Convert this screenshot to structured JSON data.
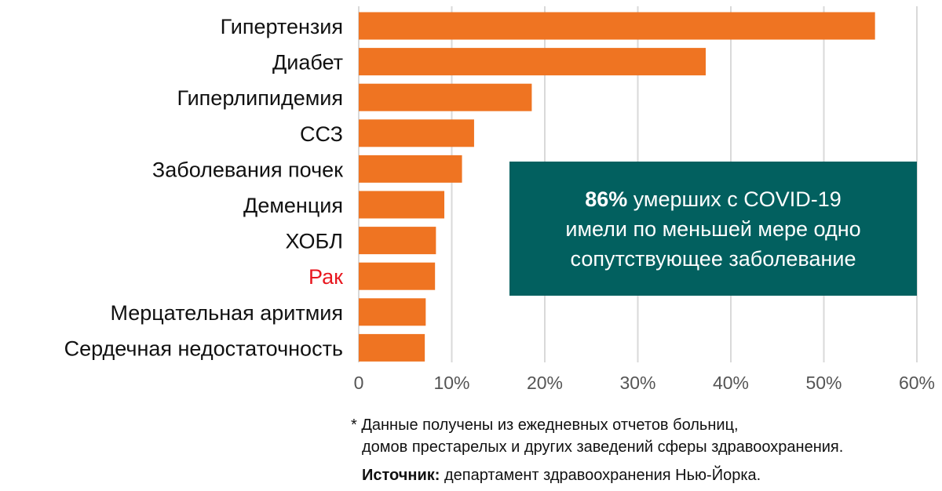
{
  "chart_data": {
    "type": "bar",
    "orientation": "horizontal",
    "categories": [
      "Гипертензия",
      "Диабет",
      "Гиперлипидемия",
      "ССЗ",
      "Заболевания почек",
      "Деменция",
      "ХОБЛ",
      "Рак",
      "Мерцательная аритмия",
      "Сердечная недостаточность"
    ],
    "values": [
      55.5,
      37.3,
      18.6,
      12.4,
      11.1,
      9.2,
      8.3,
      8.2,
      7.2,
      7.1
    ],
    "xlim": [
      0,
      60
    ],
    "ticks": [
      "0",
      "10%",
      "20%",
      "30%",
      "40%",
      "50%",
      "60%"
    ],
    "tick_values": [
      0,
      10,
      20,
      30,
      40,
      50,
      60
    ],
    "grid": "vertical",
    "colors": {
      "bar": "#EF7422",
      "grid": "#D9D9D9",
      "label": "#111111",
      "highlight_label": "#E8171F",
      "tick": "#555555"
    },
    "highlight_category": "Рак"
  },
  "callout": {
    "bold": "86%",
    "line1_rest": " умерших с COVID-19",
    "line2": "имели по меньшей мере одно",
    "line3": "сопутствующее заболевание",
    "background": "#02605F"
  },
  "footnote": {
    "line1": "* Данные получены из ежедневных отчетов больниц,",
    "line2": "домов престарелых и других заведений сферы здравоохранения."
  },
  "source": {
    "label": "Источник:",
    "text": " департамент здравоохранения Нью-Йорка."
  }
}
